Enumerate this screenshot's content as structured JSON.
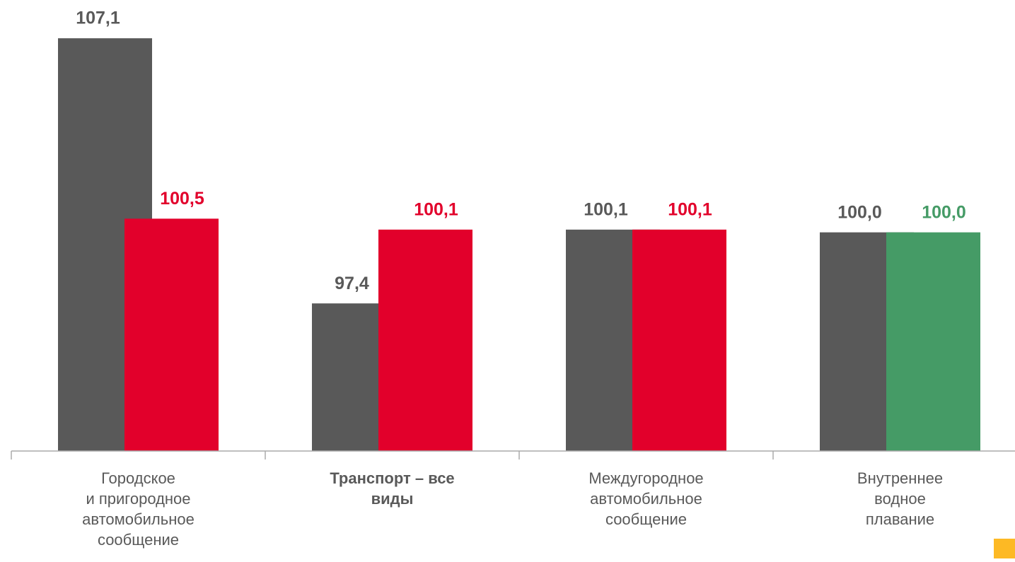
{
  "chart_data": {
    "type": "bar",
    "categories": [
      [
        "Городское",
        "и пригородное",
        "автомобильное",
        "сообщение"
      ],
      [
        "Транспорт – все",
        "виды"
      ],
      [
        "Междугородное",
        "автомобильное",
        "сообщение"
      ],
      [
        "Внутреннее",
        "водное",
        "плавание"
      ]
    ],
    "category_bold": [
      false,
      true,
      false,
      false
    ],
    "series": [
      {
        "colors": [
          "#595959",
          "#595959",
          "#595959",
          "#595959"
        ],
        "label_colors": [
          "#595959",
          "#595959",
          "#595959",
          "#595959"
        ],
        "values": [
          107.1,
          97.4,
          100.1,
          100.0
        ],
        "value_labels": [
          "107,1",
          "97,4",
          "100,1",
          "100,0"
        ]
      },
      {
        "colors": [
          "#e2002b",
          "#e2002b",
          "#e2002b",
          "#459b66"
        ],
        "label_colors": [
          "#e2002b",
          "#e2002b",
          "#e2002b",
          "#459b66"
        ],
        "values": [
          100.5,
          100.1,
          100.1,
          100.0
        ],
        "value_labels": [
          "100,5",
          "100,1",
          "100,1",
          "100,0"
        ]
      }
    ],
    "ylim": [
      92,
      108.5
    ]
  }
}
